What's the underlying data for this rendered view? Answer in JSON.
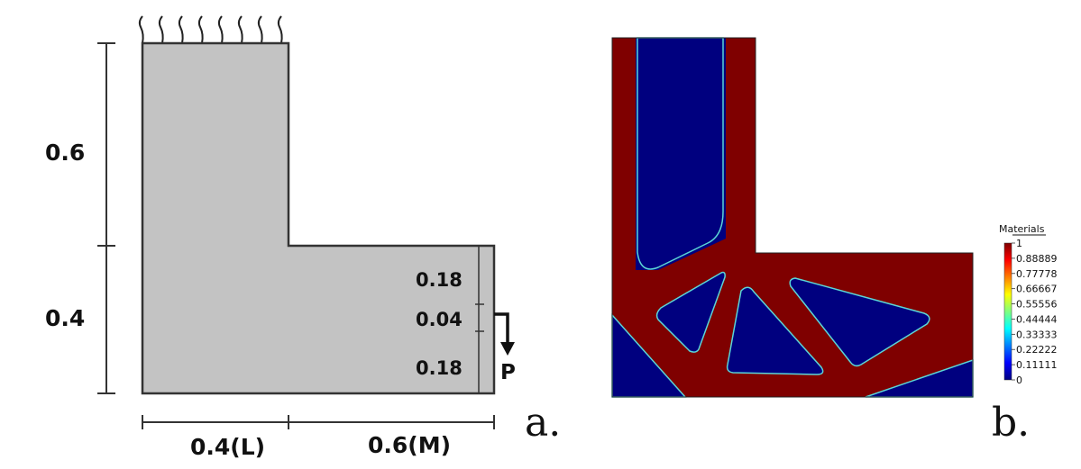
{
  "panel_a": {
    "dims": {
      "height_top": "0.6",
      "height_bottom": "0.4",
      "width_left": "0.4(L)",
      "width_right": "0.6(M)",
      "seg_upper": "0.18",
      "seg_middle": "0.04",
      "seg_lower": "0.18"
    },
    "load_label": "P",
    "panel_label": "a."
  },
  "panel_b": {
    "colorbar": {
      "title": "Materials",
      "ticks": [
        "1",
        "0.88889",
        "0.77778",
        "0.66667",
        "0.55556",
        "0.44444",
        "0.33333",
        "0.22222",
        "0.11111",
        "0"
      ],
      "colors": [
        "#00007f",
        "#0000ff",
        "#007fff",
        "#00ffff",
        "#7fff7f",
        "#ffff00",
        "#ff7f00",
        "#ff0000",
        "#7f0000"
      ]
    },
    "material_color": "#7f0000",
    "void_color": "#00007f",
    "outline_color": "#5bd6d6",
    "panel_label": "b."
  }
}
